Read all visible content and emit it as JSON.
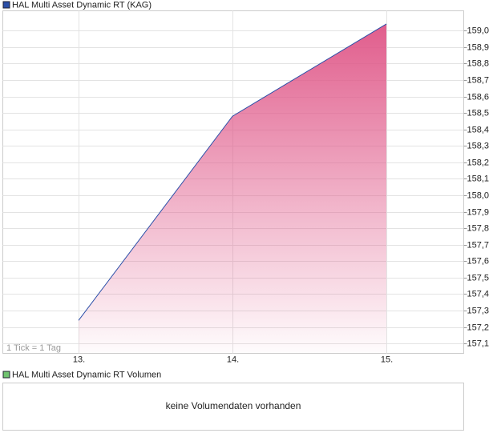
{
  "chart_data": {
    "type": "area",
    "categories": [
      "13.",
      "14.",
      "15."
    ],
    "series": [
      {
        "name": "HAL Multi Asset Dynamic RT (KAG)",
        "color": "#2b4fa8",
        "fill": "#e05a8a",
        "values": [
          157.24,
          158.48,
          159.04
        ]
      }
    ],
    "ylim": [
      157.04,
      159.12
    ],
    "yticks": [
      {
        "value": 157.1,
        "label": "157,1"
      },
      {
        "value": 157.2,
        "label": "157,2"
      },
      {
        "value": 157.3,
        "label": "157,3"
      },
      {
        "value": 157.4,
        "label": "157,4"
      },
      {
        "value": 157.5,
        "label": "157,5"
      },
      {
        "value": 157.6,
        "label": "157,6"
      },
      {
        "value": 157.7,
        "label": "157,7"
      },
      {
        "value": 157.8,
        "label": "157,8"
      },
      {
        "value": 157.9,
        "label": "157,9"
      },
      {
        "value": 158.0,
        "label": "158,0"
      },
      {
        "value": 158.1,
        "label": "158,1"
      },
      {
        "value": 158.2,
        "label": "158,2"
      },
      {
        "value": 158.3,
        "label": "158,3"
      },
      {
        "value": 158.4,
        "label": "158,4"
      },
      {
        "value": 158.5,
        "label": "158,5"
      },
      {
        "value": 158.6,
        "label": "158,6"
      },
      {
        "value": 158.7,
        "label": "158,7"
      },
      {
        "value": 158.8,
        "label": "158,8"
      },
      {
        "value": 158.9,
        "label": "158,9"
      },
      {
        "value": 159.0,
        "label": "159,0"
      }
    ],
    "grid": true,
    "tick_note": "1 Tick = 1 Tag"
  },
  "volume_panel": {
    "legend": "HAL Multi Asset Dynamic RT Volumen",
    "color": "#6fc36f",
    "message": "keine Volumendaten vorhanden"
  }
}
